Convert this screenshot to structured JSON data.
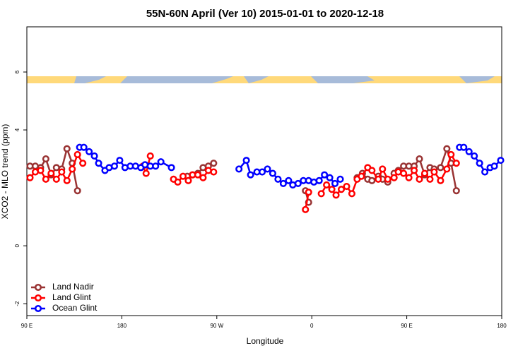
{
  "chart_data": {
    "type": "line",
    "title": "55N-60N April (Ver 10)   2015-01-01 to 2020-12-18",
    "x_label": "Longitude",
    "y_label": "XCO2 - MLO trend (ppm)",
    "xlim": [
      90,
      540
    ],
    "ylim": [
      -2.41,
      7.56
    ],
    "xticks": [
      {
        "value": 90,
        "label": "90 E"
      },
      180,
      {
        "value": 270,
        "label": "90 W"
      },
      {
        "value": 360,
        "label": "0"
      },
      {
        "value": 450,
        "label": "90 E"
      },
      {
        "value": 540,
        "label": "180"
      }
    ],
    "yticks": [
      -2,
      0,
      4,
      6
    ],
    "legend": "bottom-left",
    "series": [
      {
        "name": "Land Nadir",
        "color": "#993333",
        "x": [
          93,
          98,
          103,
          108,
          113,
          118,
          123,
          128,
          133,
          138,
          null,
          242,
          247,
          252,
          257,
          262,
          267,
          null,
          354,
          357,
          null,
          403,
          408,
          413,
          417,
          423,
          427,
          432,
          438,
          442,
          447,
          452,
          457,
          462,
          467,
          472,
          476,
          482,
          488,
          492,
          497
        ],
        "values": [
          2.75,
          2.75,
          2.7,
          3.0,
          2.45,
          2.7,
          2.65,
          3.35,
          2.85,
          1.9,
          null,
          2.4,
          2.45,
          2.5,
          2.7,
          2.75,
          2.85,
          null,
          1.9,
          1.5,
          null,
          2.35,
          2.5,
          2.3,
          2.25,
          2.4,
          2.3,
          2.2,
          2.5,
          2.6,
          2.75,
          2.75,
          2.75,
          3.0,
          2.45,
          2.7,
          2.65,
          2.7,
          3.35,
          2.85,
          1.9
        ]
      },
      {
        "name": "Land Glint",
        "color": "#ff0000",
        "x": [
          93,
          98,
          103,
          108,
          113,
          118,
          123,
          128,
          133,
          138,
          143,
          null,
          200,
          203,
          207,
          null,
          229,
          233,
          238,
          243,
          247,
          252,
          257,
          262,
          267,
          null,
          354,
          357,
          null,
          369,
          374,
          379,
          383,
          388,
          393,
          398,
          403,
          407,
          413,
          417,
          423,
          427,
          432,
          438,
          442,
          447,
          452,
          457,
          462,
          467,
          472,
          476,
          482,
          488,
          492,
          497
        ],
        "values": [
          2.35,
          2.55,
          2.6,
          2.3,
          2.5,
          2.3,
          2.55,
          2.25,
          2.65,
          3.15,
          2.85,
          null,
          2.75,
          2.5,
          3.1,
          null,
          2.3,
          2.2,
          2.4,
          2.25,
          2.45,
          2.45,
          2.35,
          2.6,
          2.55,
          null,
          1.25,
          1.85,
          null,
          1.8,
          2.1,
          1.95,
          1.75,
          1.95,
          2.05,
          1.8,
          2.3,
          2.4,
          2.7,
          2.6,
          2.3,
          2.65,
          2.3,
          2.35,
          2.55,
          2.5,
          2.35,
          2.6,
          2.3,
          2.5,
          2.3,
          2.55,
          2.25,
          2.65,
          3.15,
          2.85
        ]
      },
      {
        "name": "Ocean Glint",
        "color": "#0000ff",
        "x": [
          140,
          144,
          149,
          154,
          158,
          164,
          168,
          173,
          178,
          183,
          188,
          193,
          198,
          202,
          207,
          212,
          217,
          227,
          null,
          291,
          298,
          302,
          308,
          313,
          318,
          323,
          328,
          333,
          338,
          342,
          347,
          352,
          357,
          362,
          367,
          372,
          377,
          382,
          387,
          null,
          500,
          504,
          509,
          514,
          519,
          524,
          529,
          533,
          539
        ],
        "values": [
          3.4,
          3.4,
          3.25,
          3.1,
          2.85,
          2.6,
          2.7,
          2.75,
          2.95,
          2.7,
          2.75,
          2.75,
          2.7,
          2.8,
          2.75,
          2.75,
          2.9,
          2.7,
          null,
          2.65,
          2.95,
          2.45,
          2.55,
          2.55,
          2.65,
          2.5,
          2.3,
          2.15,
          2.25,
          2.1,
          2.15,
          2.25,
          2.25,
          2.2,
          2.25,
          2.45,
          2.35,
          2.15,
          2.3,
          null,
          3.4,
          3.4,
          3.25,
          3.1,
          2.85,
          2.55,
          2.7,
          2.75,
          2.95
        ]
      }
    ]
  }
}
